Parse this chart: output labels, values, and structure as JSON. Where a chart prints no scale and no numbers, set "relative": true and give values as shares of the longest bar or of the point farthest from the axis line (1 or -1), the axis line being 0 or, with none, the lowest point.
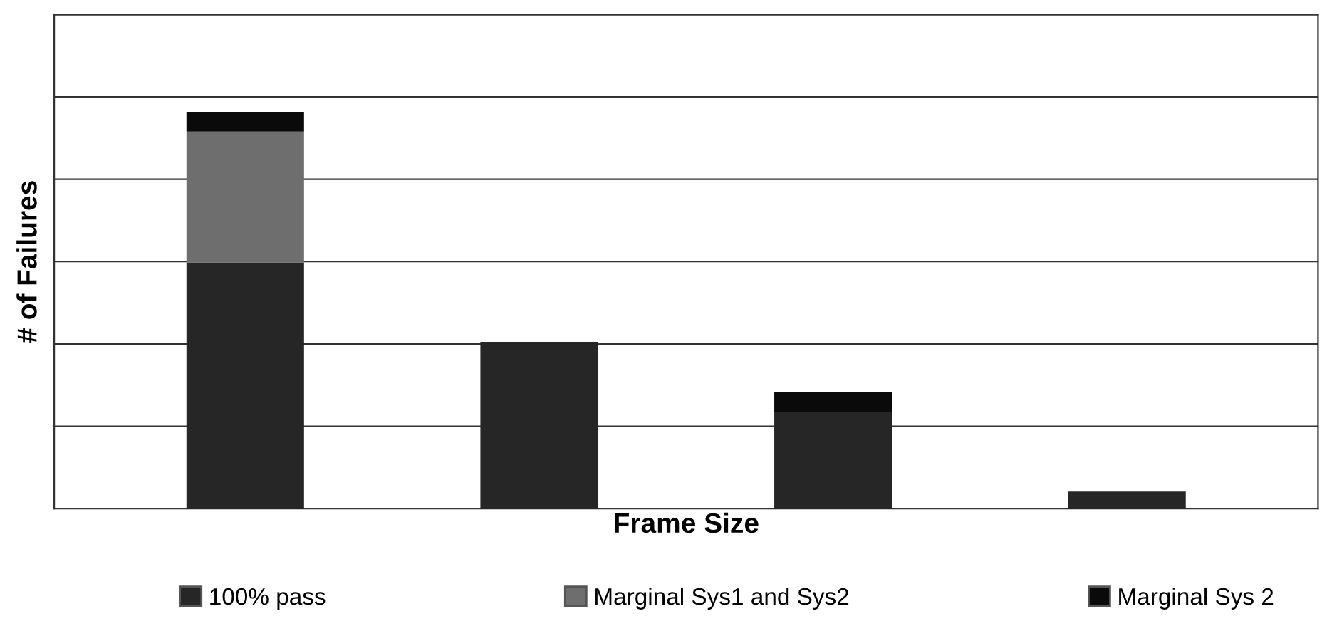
{
  "chart_data": {
    "type": "bar",
    "relative": true,
    "stacked": true,
    "xlabel": "Frame Size",
    "ylabel": "# of Failures",
    "categories": [
      null,
      null,
      null,
      null
    ],
    "series": [
      {
        "name": "100% pass",
        "color": "#262626",
        "values": [
          0.62,
          0.42,
          0.244,
          0.043
        ]
      },
      {
        "name": "Marginal Sys1 and Sys2",
        "color": "#6e6e6e",
        "values": [
          0.33,
          null,
          null,
          null
        ]
      },
      {
        "name": "Marginal Sys 2",
        "color": "#0a0a0a",
        "values": [
          0.05,
          null,
          0.05,
          null
        ]
      }
    ],
    "grid": "y",
    "legend": "bottom",
    "tick_labels": false
  }
}
